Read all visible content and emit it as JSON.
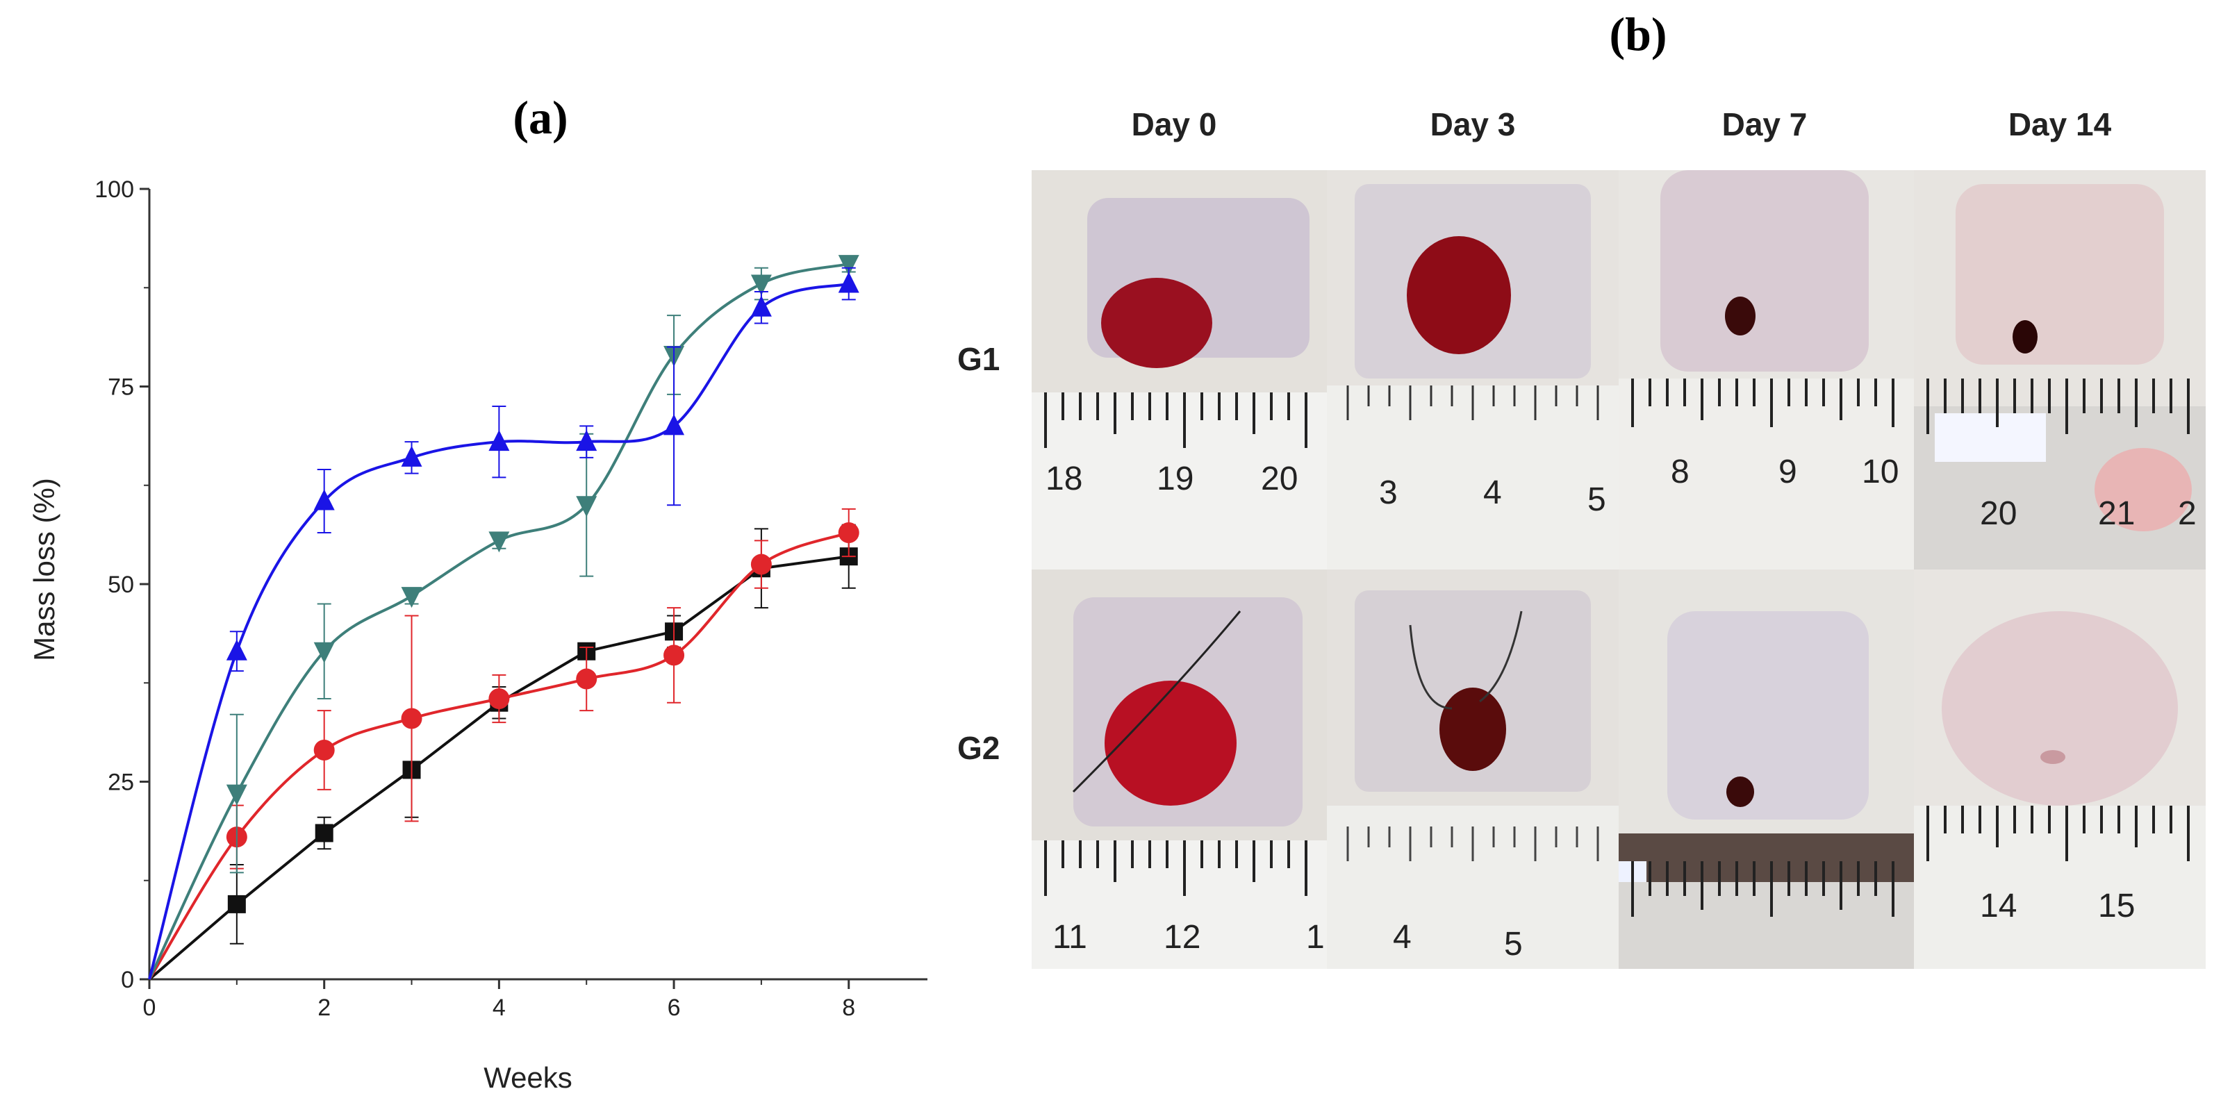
{
  "chart_data": {
    "type": "line",
    "title": "(a)",
    "xlabel": "Weeks",
    "ylabel": "Mass loss (%)",
    "xlim": [
      0,
      8.9
    ],
    "ylim": [
      0,
      100
    ],
    "xticks": [
      0,
      2,
      4,
      6,
      8
    ],
    "yticks": [
      0,
      25,
      50,
      75,
      100
    ],
    "series": [
      {
        "name": "black-squares",
        "color": "#111111",
        "marker": "square",
        "x": [
          0,
          1,
          2,
          3,
          4,
          5,
          6,
          7,
          8
        ],
        "values": [
          0,
          9.5,
          18.5,
          26.5,
          35,
          41.5,
          44,
          52,
          53.5
        ],
        "errors": [
          0,
          5,
          2,
          6,
          2,
          1,
          2,
          5,
          4
        ]
      },
      {
        "name": "red-circles",
        "color": "#e0262b",
        "marker": "circle",
        "x": [
          0,
          1,
          2,
          3,
          4,
          5,
          6,
          7,
          8
        ],
        "values": [
          0,
          18,
          29,
          33,
          35.5,
          38,
          41,
          52.5,
          56.5
        ],
        "errors": [
          0,
          4,
          5,
          13,
          3,
          4,
          6,
          3,
          3
        ]
      },
      {
        "name": "teal-down-triangles",
        "color": "#3e7f7a",
        "marker": "triangle-down",
        "x": [
          0,
          1,
          2,
          3,
          4,
          5,
          6,
          7,
          8
        ],
        "values": [
          0,
          23.5,
          41.5,
          48.5,
          55.5,
          60,
          79,
          88,
          90.5
        ],
        "errors": [
          0,
          10,
          6,
          1,
          1,
          9,
          5,
          2,
          1
        ]
      },
      {
        "name": "blue-up-triangles",
        "color": "#1a14e6",
        "marker": "triangle-up",
        "x": [
          0,
          1,
          2,
          3,
          4,
          5,
          6,
          7,
          8
        ],
        "values": [
          0,
          41.5,
          60.5,
          66,
          68,
          68,
          70,
          85,
          88
        ],
        "errors": [
          0,
          2.5,
          4,
          2,
          4.5,
          2,
          10,
          2,
          2
        ]
      }
    ]
  },
  "panel_b": {
    "title": "(b)",
    "days": [
      "Day 0",
      "Day 3",
      "Day 7",
      "Day 14"
    ],
    "groups": [
      "G1",
      "G2"
    ],
    "ruler_numbers": {
      "g1": [
        [
          "18",
          "19",
          "20"
        ],
        [
          "3",
          "4",
          "5"
        ],
        [
          "8",
          "9",
          "10"
        ],
        [
          "20",
          "21",
          "2"
        ]
      ],
      "g2": [
        [
          "11",
          "12",
          "1"
        ],
        [
          "4",
          "5"
        ],
        [],
        [
          "14",
          "15"
        ]
      ]
    }
  }
}
